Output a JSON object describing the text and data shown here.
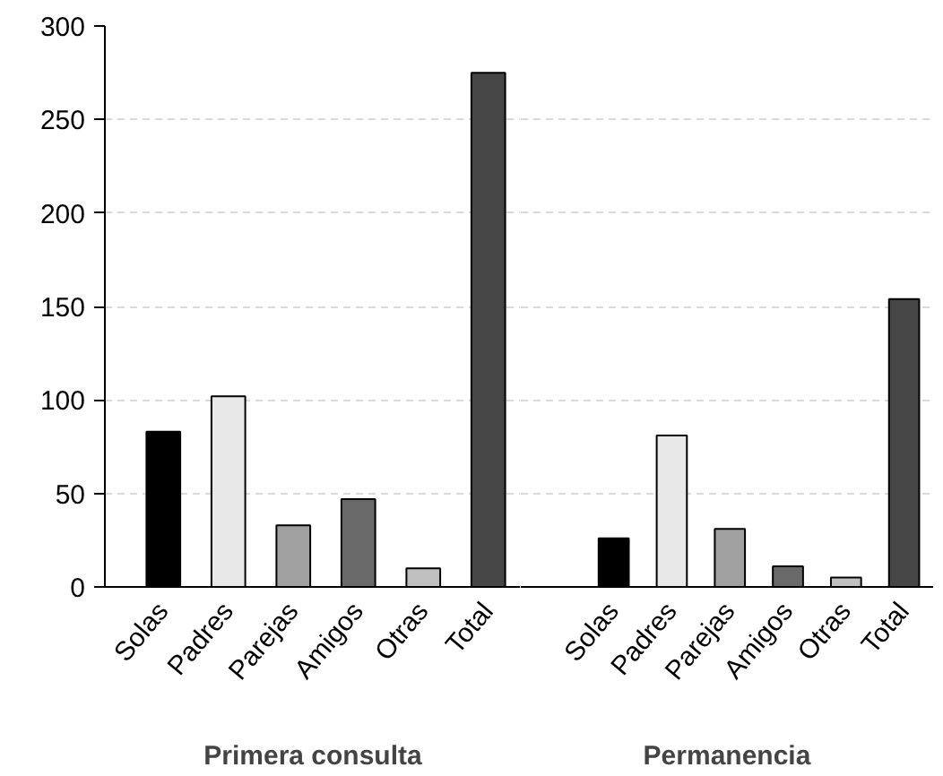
{
  "chart_data": [
    {
      "type": "bar",
      "xlabel": "Primera consulta",
      "categories": [
        "Solas",
        "Padres",
        "Parejas",
        "Amigos",
        "Otras",
        "Total"
      ],
      "values": [
        83,
        102,
        33,
        47,
        10,
        275
      ],
      "colors": [
        "#000000",
        "#e8e8e8",
        "#a0a0a0",
        "#696969",
        "#c0c0c0",
        "#464646"
      ],
      "ylim": [
        0,
        300
      ],
      "yticks": [
        0,
        50,
        100,
        150,
        200,
        250,
        300
      ],
      "grid": "y"
    },
    {
      "type": "bar",
      "xlabel": "Permanencia",
      "categories": [
        "Solas",
        "Padres",
        "Parejas",
        "Amigos",
        "Otras",
        "Total"
      ],
      "values": [
        26,
        81,
        31,
        11,
        5,
        154
      ],
      "colors": [
        "#000000",
        "#e8e8e8",
        "#a0a0a0",
        "#696969",
        "#c0c0c0",
        "#464646"
      ],
      "ylim": [
        0,
        300
      ],
      "yticks": [
        0,
        50,
        100,
        150,
        200,
        250,
        300
      ],
      "grid": "y",
      "tick_labels": "x"
    }
  ]
}
